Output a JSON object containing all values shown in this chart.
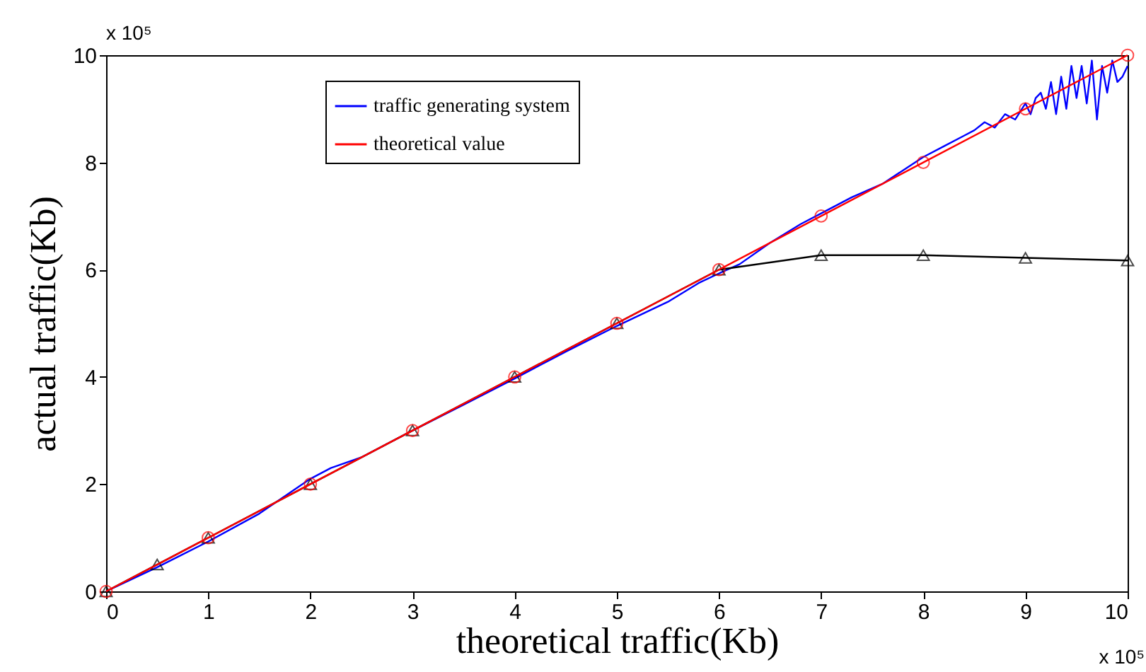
{
  "chart_data": {
    "type": "line",
    "xlabel": "theoretical traffic(Kb)",
    "ylabel": "actual traffic(Kb)",
    "xlim": [
      0,
      10
    ],
    "ylim": [
      0,
      10
    ],
    "xticks": [
      0,
      1,
      2,
      3,
      4,
      5,
      6,
      7,
      8,
      9,
      10
    ],
    "yticks": [
      0,
      2,
      4,
      6,
      8,
      10
    ],
    "grid": false,
    "legend": "top left",
    "annotations": [
      "x 10⁵",
      "x 10⁵"
    ],
    "series": [
      {
        "name": "traffic generating system",
        "color": "#0000ff",
        "marker": "none",
        "x": [
          0,
          0.5,
          1,
          1.5,
          2,
          2.2,
          2.5,
          2.8,
          3,
          3.5,
          4,
          4.5,
          5,
          5.5,
          5.8,
          6,
          6.2,
          6.5,
          6.8,
          7,
          7.3,
          7.6,
          7.8,
          8,
          8.2,
          8.4,
          8.5,
          8.6,
          8.7,
          8.8,
          8.9,
          9.0,
          9.05,
          9.1,
          9.15,
          9.2,
          9.25,
          9.3,
          9.35,
          9.4,
          9.45,
          9.5,
          9.55,
          9.6,
          9.65,
          9.7,
          9.75,
          9.8,
          9.85,
          9.9,
          9.95,
          10
        ],
        "values": [
          0,
          0.45,
          0.93,
          1.45,
          2.1,
          2.3,
          2.5,
          2.8,
          3.0,
          3.48,
          3.97,
          4.47,
          4.95,
          5.4,
          5.75,
          5.93,
          6.1,
          6.5,
          6.85,
          7.05,
          7.35,
          7.6,
          7.85,
          8.1,
          8.3,
          8.5,
          8.6,
          8.75,
          8.65,
          8.9,
          8.8,
          9.1,
          8.9,
          9.2,
          9.3,
          9.0,
          9.5,
          8.9,
          9.6,
          9.0,
          9.8,
          9.2,
          9.8,
          9.1,
          9.9,
          8.8,
          9.8,
          9.3,
          9.9,
          9.5,
          9.6,
          9.8
        ]
      },
      {
        "color": "#000000",
        "marker": "triangle",
        "x": [
          0,
          0.5,
          1,
          2,
          3,
          4,
          5,
          6,
          7,
          8,
          9,
          10
        ],
        "values": [
          0,
          0.5,
          1,
          2,
          3,
          4,
          5,
          6,
          6.27,
          6.27,
          6.22,
          6.17
        ]
      },
      {
        "name": "theoretical value",
        "color": "#ff0000",
        "marker": "circle",
        "x": [
          0,
          1,
          2,
          3,
          4,
          5,
          6,
          7,
          8,
          9,
          10
        ],
        "values": [
          0,
          1,
          2,
          3,
          4,
          5,
          6,
          7,
          8,
          9,
          10
        ]
      }
    ]
  }
}
